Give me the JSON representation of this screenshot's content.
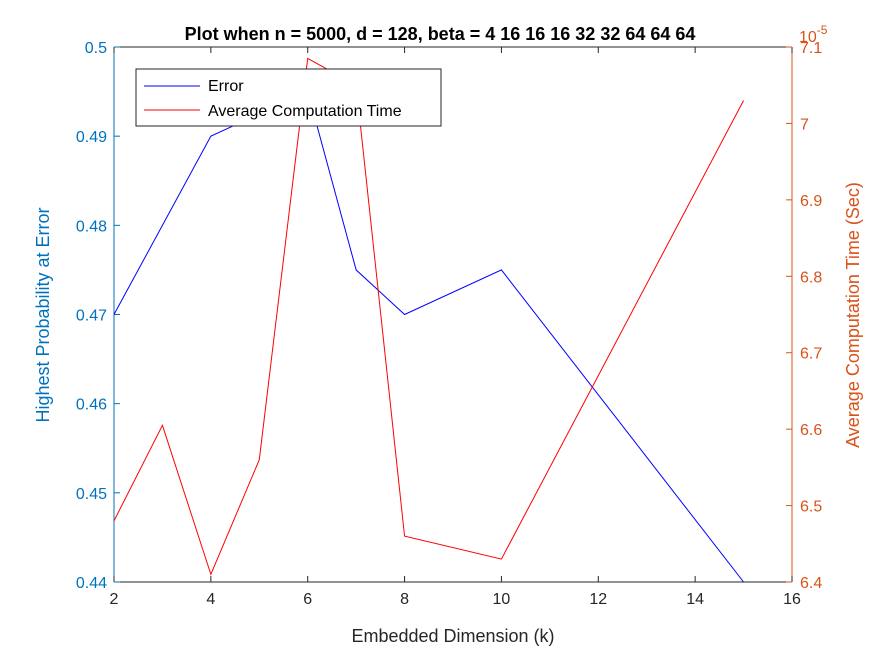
{
  "chart_data": {
    "type": "line",
    "title": "Plot when n = 5000, d = 128, beta = 4  16  16  16  32  32  64  64  64",
    "xlabel": "Embedded Dimension (k)",
    "ylabel_left": "Highest Probability at Error",
    "ylabel_right": "Average Computation Time (Sec)",
    "right_exponent_base": "10",
    "right_exponent_power": "-5",
    "xlim": [
      2,
      16
    ],
    "ylim_left": [
      0.44,
      0.5
    ],
    "ylim_right": [
      6.4,
      7.1
    ],
    "x_ticks": [
      "2",
      "4",
      "6",
      "8",
      "10",
      "12",
      "14",
      "16"
    ],
    "y_ticks_left": [
      "0.44",
      "0.45",
      "0.46",
      "0.47",
      "0.48",
      "0.49",
      "0.5"
    ],
    "y_ticks_right": [
      "6.4",
      "6.5",
      "6.6",
      "6.7",
      "6.8",
      "6.9",
      "7",
      "7.1"
    ],
    "legend_position": "top-left",
    "grid": false,
    "series": [
      {
        "name": "Error",
        "axis": "left",
        "color": "#0000ff",
        "x": [
          2,
          4,
          6,
          7,
          8,
          10,
          15
        ],
        "y": [
          0.47,
          0.49,
          0.495,
          0.475,
          0.47,
          0.475,
          0.44
        ]
      },
      {
        "name": "Average Computation Time",
        "axis": "right",
        "color": "#ff0000",
        "x": [
          2,
          3,
          4,
          5,
          6,
          7,
          8,
          10,
          15
        ],
        "y": [
          6.48,
          6.605,
          6.41,
          6.56,
          7.085,
          7.05,
          6.46,
          6.43,
          7.03
        ]
      }
    ],
    "colors": {
      "left_axis": "#0072bd",
      "right_axis": "#d95319",
      "frame": "#262626"
    }
  }
}
